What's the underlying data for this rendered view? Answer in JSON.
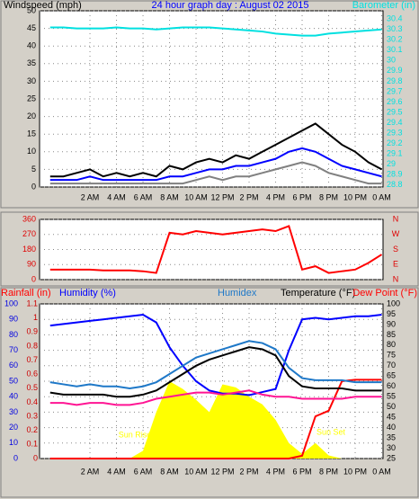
{
  "chart_data": [
    {
      "type": "line",
      "title": "24 hour graph day : August 02 2015",
      "ylabel": "Windspeed (mph)",
      "x": [
        -1,
        0,
        1,
        2,
        3,
        4,
        5,
        6,
        7,
        8,
        9,
        10,
        11,
        12,
        13,
        14,
        15,
        16,
        17,
        18,
        19,
        20,
        21,
        22,
        23,
        24
      ],
      "xlim": [
        -1.8,
        24.1
      ],
      "xticks": [
        {
          "value": 2,
          "label": "2 AM"
        },
        {
          "value": 4,
          "label": "4 AM"
        },
        {
          "value": 6,
          "label": "6 AM"
        },
        {
          "value": 8,
          "label": "8 AM"
        },
        {
          "value": 10,
          "label": "10 AM"
        },
        {
          "value": 12,
          "label": "12 PM"
        },
        {
          "value": 14,
          "label": "2 PM"
        },
        {
          "value": 16,
          "label": "4 PM"
        },
        {
          "value": 18,
          "label": "6 PM"
        },
        {
          "value": 20,
          "label": "8 PM"
        },
        {
          "value": 22,
          "label": "10 PM"
        },
        {
          "value": 24,
          "label": "0 AM"
        }
      ],
      "ylim": [
        0,
        50
      ],
      "yticks": [
        0,
        5,
        10,
        15,
        20,
        25,
        30,
        35,
        40,
        45,
        50
      ],
      "y2lim": [
        28.78,
        30.48
      ],
      "y2ticks": [
        28.8,
        28.9,
        29,
        29.1,
        29.2,
        29.3,
        29.4,
        29.5,
        29.6,
        29.7,
        29.8,
        29.9,
        30,
        30.1,
        30.2,
        30.3,
        30.4
      ],
      "grid": true,
      "series": [
        {
          "color": "#808080",
          "values": [
            1,
            1,
            1,
            1,
            1,
            1,
            1,
            1,
            1,
            1,
            1,
            2,
            3,
            2,
            3,
            3,
            4,
            5,
            6,
            7,
            6,
            4,
            3,
            2,
            1,
            1
          ]
        },
        {
          "color": "#000000",
          "values": [
            3,
            3,
            4,
            5,
            3,
            4,
            3,
            4,
            3,
            6,
            5,
            7,
            8,
            7,
            9,
            8,
            10,
            12,
            14,
            16,
            18,
            15,
            12,
            10,
            7,
            5
          ]
        },
        {
          "color": "#0000ff",
          "values": [
            2,
            2,
            2,
            3,
            2,
            2,
            2,
            2,
            2,
            3,
            3,
            4,
            5,
            5,
            6,
            6,
            7,
            8,
            10,
            11,
            10,
            8,
            6,
            5,
            4,
            3
          ]
        },
        {
          "name": "Barometer (in)",
          "color": "#00e0e0",
          "axis": "y2",
          "values": [
            30.32,
            30.32,
            30.31,
            30.31,
            30.31,
            30.32,
            30.31,
            30.31,
            30.3,
            30.31,
            30.32,
            30.32,
            30.32,
            30.31,
            30.3,
            30.29,
            30.28,
            30.26,
            30.25,
            30.24,
            30.24,
            30.26,
            30.27,
            30.28,
            30.29,
            30.3
          ]
        }
      ]
    },
    {
      "type": "line",
      "x": [
        -1,
        0,
        1,
        2,
        3,
        4,
        5,
        6,
        7,
        8,
        9,
        10,
        11,
        12,
        13,
        14,
        15,
        16,
        17,
        18,
        19,
        20,
        21,
        22,
        23,
        24
      ],
      "xlim": [
        -1.8,
        24.1
      ],
      "ylim": [
        0,
        360
      ],
      "yticks": [
        0,
        90,
        180,
        270,
        360
      ],
      "y2lim": [
        0,
        360
      ],
      "y2ticks": [
        {
          "value": 0,
          "label": "N"
        },
        {
          "value": 90,
          "label": "E"
        },
        {
          "value": 180,
          "label": "S"
        },
        {
          "value": 270,
          "label": "W"
        },
        {
          "value": 360,
          "label": "N"
        }
      ],
      "grid": true,
      "series": [
        {
          "color": "#ff0000",
          "values": [
            60,
            60,
            60,
            60,
            55,
            55,
            55,
            50,
            40,
            280,
            270,
            290,
            280,
            270,
            280,
            290,
            300,
            290,
            320,
            60,
            80,
            40,
            50,
            60,
            100,
            150
          ]
        }
      ]
    },
    {
      "type": "line",
      "x": [
        -1,
        0,
        1,
        2,
        3,
        4,
        5,
        6,
        7,
        8,
        9,
        10,
        11,
        12,
        13,
        14,
        15,
        16,
        17,
        18,
        19,
        20,
        21,
        22,
        23,
        24
      ],
      "xlim": [
        -1.8,
        24.1
      ],
      "xticks": [
        {
          "value": 2,
          "label": "2 AM"
        },
        {
          "value": 4,
          "label": "4 AM"
        },
        {
          "value": 6,
          "label": "6 AM"
        },
        {
          "value": 8,
          "label": "8 AM"
        },
        {
          "value": 10,
          "label": "10 AM"
        },
        {
          "value": 12,
          "label": "12 PM"
        },
        {
          "value": 14,
          "label": "2 PM"
        },
        {
          "value": 16,
          "label": "4 PM"
        },
        {
          "value": 18,
          "label": "6 PM"
        },
        {
          "value": 20,
          "label": "8 PM"
        },
        {
          "value": 22,
          "label": "10 PM"
        },
        {
          "value": 24,
          "label": "0 AM"
        }
      ],
      "ylim": [
        0,
        100
      ],
      "yticks": [
        0,
        10,
        20,
        30,
        40,
        50,
        60,
        70,
        80,
        90,
        100
      ],
      "y2lim": [
        0,
        1.1
      ],
      "y2ticks": [
        0,
        0.1,
        0.2,
        0.3,
        0.4,
        0.5,
        0.6,
        0.7,
        0.8,
        0.9,
        1,
        1.1
      ],
      "y3lim": [
        25,
        100
      ],
      "y3ticks": [
        25,
        30,
        35,
        40,
        45,
        50,
        55,
        60,
        65,
        70,
        75,
        80,
        85,
        90,
        95,
        100
      ],
      "grid": true,
      "annotations": [
        "Sun Rise",
        "Sun Set"
      ],
      "series": [
        {
          "color": "#ffff00",
          "kind": "area",
          "values": [
            0,
            0,
            0,
            0,
            0,
            0,
            0,
            5,
            30,
            50,
            45,
            38,
            30,
            48,
            46,
            40,
            35,
            25,
            10,
            3,
            10,
            2,
            0,
            0,
            0,
            0
          ]
        },
        {
          "name": "Rainfall (in)",
          "color": "#ff0000",
          "axis": "y2",
          "values": [
            0,
            0,
            0,
            0,
            0,
            0,
            0,
            0,
            0,
            0,
            0,
            0,
            0,
            0,
            0,
            0,
            0,
            0,
            0,
            0.02,
            0.3,
            0.34,
            0.55,
            0.56,
            0.56,
            0.56
          ]
        },
        {
          "name": "Humidity (%)",
          "color": "#0000ff",
          "values": [
            86,
            87,
            88,
            89,
            90,
            91,
            92,
            93,
            88,
            72,
            60,
            50,
            44,
            42,
            42,
            41,
            43,
            45,
            70,
            90,
            91,
            90,
            91,
            92,
            92,
            93
          ]
        },
        {
          "name": "Humidex",
          "color": "#1e78c8",
          "axis": "y3",
          "values": [
            62,
            61,
            60,
            61,
            60,
            60,
            59,
            60,
            62,
            66,
            70,
            74,
            76,
            78,
            80,
            82,
            81,
            78,
            69,
            64,
            63,
            63,
            63,
            62,
            62,
            62
          ]
        },
        {
          "name": "Temperature (°F)",
          "color": "#000000",
          "axis": "y3",
          "values": [
            57,
            56,
            56,
            56,
            56,
            55,
            55,
            56,
            58,
            62,
            66,
            70,
            73,
            75,
            77,
            79,
            78,
            75,
            65,
            60,
            59,
            59,
            59,
            58,
            58,
            58
          ]
        },
        {
          "name": "Dew Point (°F)",
          "color": "#ff1493",
          "axis": "y3",
          "values": [
            52,
            52,
            51,
            52,
            52,
            51,
            51,
            52,
            54,
            55,
            56,
            57,
            57,
            56,
            57,
            58,
            56,
            55,
            55,
            54,
            54,
            54,
            54,
            55,
            55,
            55
          ]
        }
      ]
    }
  ]
}
